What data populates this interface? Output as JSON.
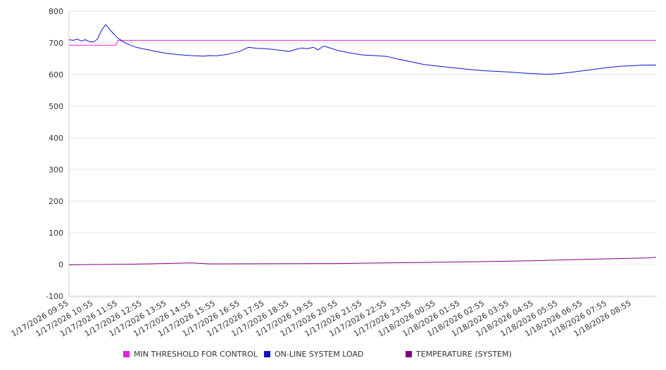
{
  "chart_data": {
    "type": "line",
    "title": "",
    "xlabel": "",
    "ylabel": "",
    "ylim": [
      -100,
      800
    ],
    "yticks": [
      "800",
      "700",
      "600",
      "500",
      "400",
      "300",
      "200",
      "100",
      "0",
      "-100"
    ],
    "x_ticks": [
      "1/17/2026 09:55",
      "1/17/2026 10:55",
      "1/17/2026 11:55",
      "1/17/2026 12:55",
      "1/17/2026 13:55",
      "1/17/2026 14:55",
      "1/17/2026 15:55",
      "1/17/2026 16:55",
      "1/17/2026 17:55",
      "1/17/2026 18:55",
      "1/17/2026 19:55",
      "1/17/2026 20:55",
      "1/17/2026 21:55",
      "1/17/2026 22:55",
      "1/17/2026 23:55",
      "1/18/2026 00:55",
      "1/18/2026 01:55",
      "1/18/2026 02:55",
      "1/18/2026 03:55",
      "1/18/2026 04:55",
      "1/18/2026 05:55",
      "1/18/2026 06:55",
      "1/18/2026 07:55",
      "1/18/2026 08:55"
    ],
    "x_end": "1/18/2026 09:55",
    "grid": true,
    "legend_position": "bottom",
    "series": [
      {
        "name": "MIN THRESHOLD FOR CONTROL",
        "color": "#e020e0",
        "points": [
          [
            "1/17/2026 09:55",
            693
          ],
          [
            "1/17/2026 11:50",
            693
          ],
          [
            "1/17/2026 11:55",
            708
          ],
          [
            "1/18/2026 09:55",
            708
          ]
        ]
      },
      {
        "name": "ON-LINE SYSTEM LOAD",
        "color": "#1010cc",
        "points": [
          [
            "1/17/2026 09:55",
            710
          ],
          [
            "1/17/2026 10:05",
            708
          ],
          [
            "1/17/2026 10:15",
            712
          ],
          [
            "1/17/2026 10:25",
            706
          ],
          [
            "1/17/2026 10:35",
            710
          ],
          [
            "1/17/2026 10:45",
            704
          ],
          [
            "1/17/2026 10:55",
            703
          ],
          [
            "1/17/2026 11:05",
            712
          ],
          [
            "1/17/2026 11:15",
            740
          ],
          [
            "1/17/2026 11:25",
            758
          ],
          [
            "1/17/2026 11:35",
            742
          ],
          [
            "1/17/2026 11:45",
            728
          ],
          [
            "1/17/2026 11:55",
            715
          ],
          [
            "1/17/2026 12:10",
            702
          ],
          [
            "1/17/2026 12:25",
            693
          ],
          [
            "1/17/2026 12:40",
            686
          ],
          [
            "1/17/2026 12:55",
            682
          ],
          [
            "1/17/2026 13:25",
            674
          ],
          [
            "1/17/2026 13:55",
            667
          ],
          [
            "1/17/2026 14:25",
            663
          ],
          [
            "1/17/2026 14:55",
            660
          ],
          [
            "1/17/2026 15:25",
            658
          ],
          [
            "1/17/2026 15:40",
            660
          ],
          [
            "1/17/2026 15:55",
            659
          ],
          [
            "1/17/2026 16:25",
            664
          ],
          [
            "1/17/2026 16:55",
            674
          ],
          [
            "1/17/2026 17:15",
            686
          ],
          [
            "1/17/2026 17:35",
            683
          ],
          [
            "1/17/2026 17:55",
            682
          ],
          [
            "1/17/2026 18:25",
            678
          ],
          [
            "1/17/2026 18:55",
            673
          ],
          [
            "1/17/2026 19:10",
            679
          ],
          [
            "1/17/2026 19:25",
            684
          ],
          [
            "1/17/2026 19:40",
            682
          ],
          [
            "1/17/2026 19:55",
            686
          ],
          [
            "1/17/2026 20:05",
            678
          ],
          [
            "1/17/2026 20:20",
            690
          ],
          [
            "1/17/2026 20:55",
            676
          ],
          [
            "1/17/2026 21:25",
            668
          ],
          [
            "1/17/2026 21:55",
            662
          ],
          [
            "1/17/2026 22:25",
            660
          ],
          [
            "1/17/2026 22:55",
            657
          ],
          [
            "1/17/2026 23:25",
            648
          ],
          [
            "1/17/2026 23:55",
            640
          ],
          [
            "1/18/2026 00:25",
            632
          ],
          [
            "1/18/2026 00:55",
            627
          ],
          [
            "1/18/2026 01:25",
            623
          ],
          [
            "1/18/2026 01:55",
            619
          ],
          [
            "1/18/2026 02:25",
            615
          ],
          [
            "1/18/2026 02:55",
            612
          ],
          [
            "1/18/2026 03:25",
            610
          ],
          [
            "1/18/2026 03:55",
            608
          ],
          [
            "1/18/2026 04:25",
            605
          ],
          [
            "1/18/2026 04:55",
            603
          ],
          [
            "1/18/2026 05:25",
            601
          ],
          [
            "1/18/2026 05:55",
            603
          ],
          [
            "1/18/2026 06:25",
            607
          ],
          [
            "1/18/2026 06:55",
            612
          ],
          [
            "1/18/2026 07:25",
            617
          ],
          [
            "1/18/2026 07:55",
            622
          ],
          [
            "1/18/2026 08:25",
            626
          ],
          [
            "1/18/2026 08:55",
            628
          ],
          [
            "1/18/2026 09:25",
            630
          ],
          [
            "1/18/2026 09:55",
            630
          ]
        ]
      },
      {
        "name": "TEMPERATURE (SYSTEM)",
        "color": "#800080",
        "points": [
          [
            "1/17/2026 09:55",
            -1
          ],
          [
            "1/17/2026 12:25",
            1
          ],
          [
            "1/17/2026 14:55",
            5
          ],
          [
            "1/17/2026 15:40",
            2
          ],
          [
            "1/17/2026 20:55",
            3
          ],
          [
            "1/17/2026 23:55",
            6
          ],
          [
            "1/18/2026 02:55",
            9
          ],
          [
            "1/18/2026 04:55",
            12
          ],
          [
            "1/18/2026 06:55",
            16
          ],
          [
            "1/18/2026 09:40",
            21
          ],
          [
            "1/18/2026 09:55",
            23
          ]
        ]
      }
    ]
  }
}
